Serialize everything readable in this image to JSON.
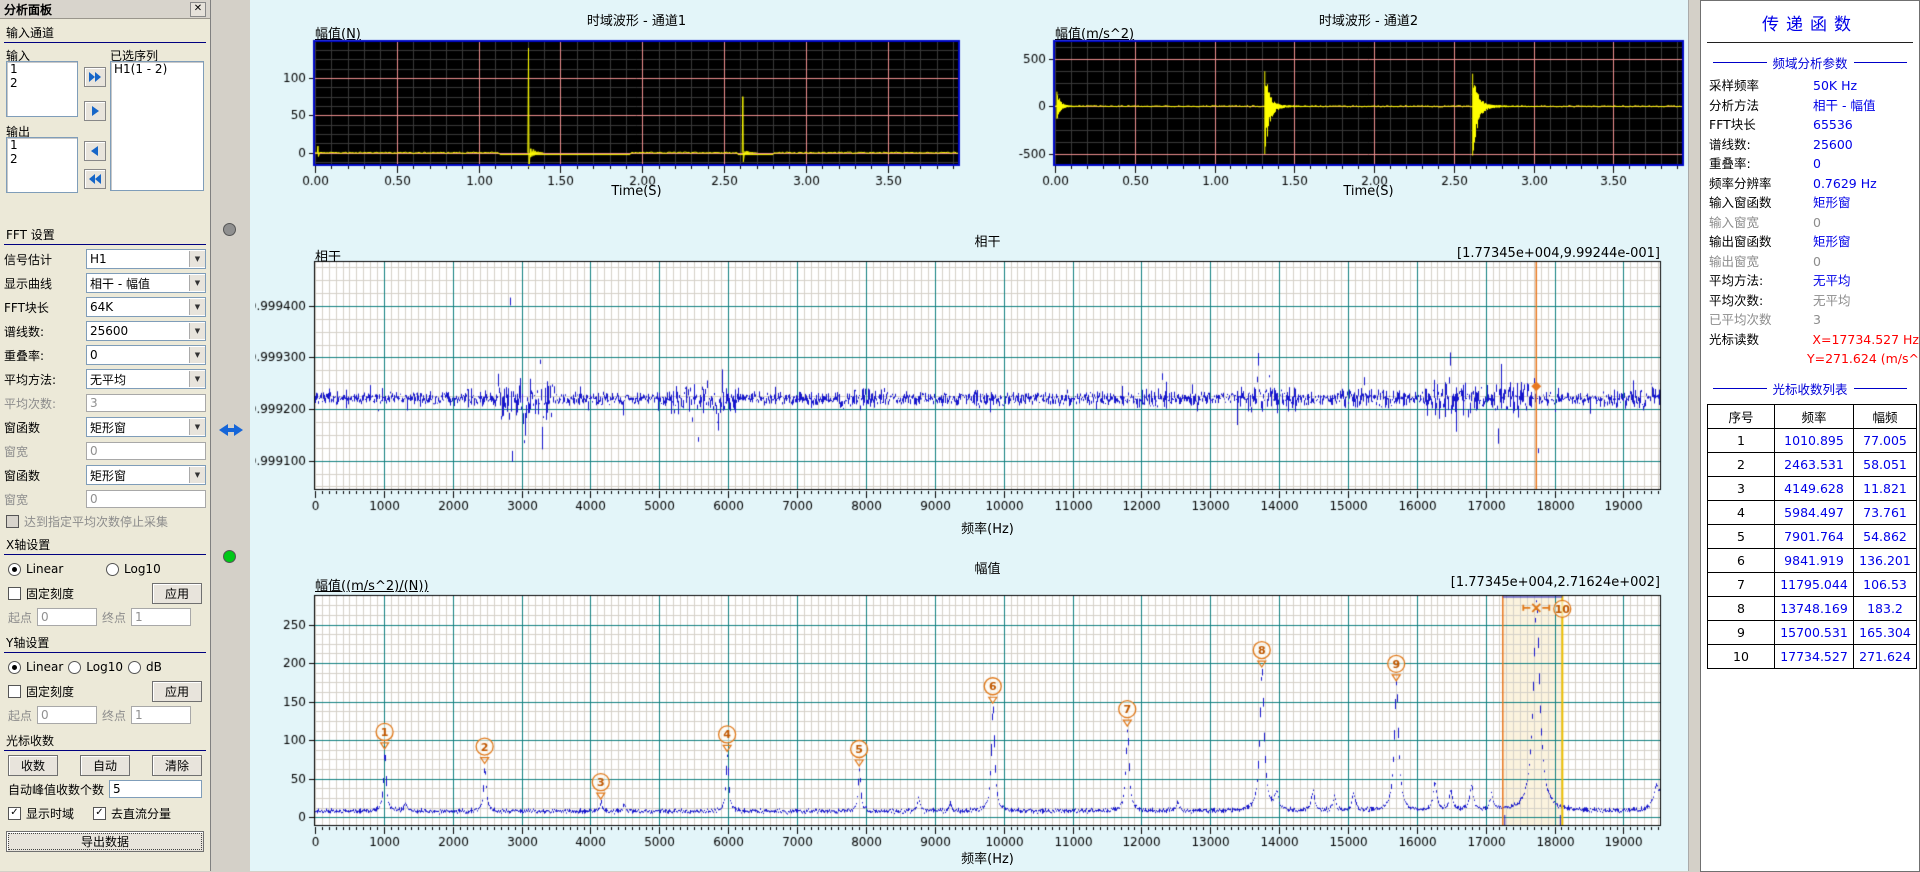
{
  "icons": {
    "close": "✕",
    "dropdown": "▼"
  },
  "palette": {
    "chart_bg": "#E3F5F9",
    "time_bg": "#000000",
    "time_grid_major": "#EF8F8F",
    "time_grid_minor": "#3A3A3A",
    "time_trace": "#FFFF00",
    "time_border": "#0008C8",
    "freq_grid_major": "#108080",
    "freq_grid_minor": "#D5D1C8",
    "freq_trace": "#1515CC",
    "cursor_orange": "#E87820",
    "cursor_gold": "#EFC000",
    "band_fill": "#FBF3DE",
    "marker_orange": "#E07818",
    "value_blue": "#0000E8",
    "value_gray": "#8C8C8C",
    "value_red": "#FF0000"
  },
  "left_panel": {
    "title": "分析面板",
    "input_section": {
      "title": "输入通道",
      "input_label": "输入",
      "input_items": [
        "1",
        "2"
      ],
      "selected_label": "已选序列",
      "selected_items": [
        "H1(1 - 2)"
      ],
      "output_label": "输出",
      "output_items": [
        "1",
        "2"
      ]
    },
    "fft": {
      "title": "FFT 设置",
      "rows": [
        {
          "label": "信号估计",
          "value": "H1",
          "type": "select"
        },
        {
          "label": "显示曲线",
          "value": "相干 - 幅值",
          "type": "select"
        },
        {
          "label": "FFT块长",
          "value": "64K",
          "type": "select"
        },
        {
          "label": "谱线数:",
          "value": "25600",
          "type": "select"
        },
        {
          "label": "重叠率:",
          "value": "0",
          "type": "select"
        },
        {
          "label": "平均方法:",
          "value": "无平均",
          "type": "select"
        },
        {
          "label": "平均次数:",
          "value": "3",
          "type": "input",
          "disabled": true
        },
        {
          "label": "窗函数",
          "value": "矩形窗",
          "type": "select"
        },
        {
          "label": "窗宽",
          "value": "0",
          "type": "input",
          "disabled": true
        },
        {
          "label": "窗函数",
          "value": "矩形窗",
          "type": "select"
        },
        {
          "label": "窗宽",
          "value": "0",
          "type": "input",
          "disabled": true
        }
      ],
      "stop_checkbox": "达到指定平均次数停止采集"
    },
    "x_axis": {
      "title": "X轴设置",
      "linear": "Linear",
      "log10": "Log10",
      "fixed": "固定刻度",
      "apply": "应用",
      "start_label": "起点",
      "start": "0",
      "end_label": "终点",
      "end": "1"
    },
    "y_axis": {
      "title": "Y轴设置",
      "linear": "Linear",
      "log10": "Log10",
      "db": "dB",
      "fixed": "固定刻度",
      "apply": "应用",
      "start_label": "起点",
      "start": "0",
      "end_label": "终点",
      "end": "1"
    },
    "cursor_section": {
      "title": "光标收数",
      "collect": "收数",
      "auto": "自动",
      "clear": "清除",
      "count_label": "自动峰值收数个数",
      "count_value": "5",
      "show_time": "显示时域",
      "remove_dc": "去直流分量",
      "export": "导出数据"
    }
  },
  "right_panel": {
    "title": "传递函数",
    "freq_section": "频域分析参数",
    "params": [
      {
        "label": "采样频率",
        "value": "50K Hz",
        "lc": "black",
        "vc": "blue"
      },
      {
        "label": "分析方法",
        "value": "相干 - 幅值",
        "lc": "black",
        "vc": "blue"
      },
      {
        "label": "FFT块长",
        "value": "65536",
        "lc": "black",
        "vc": "blue"
      },
      {
        "label": "谱线数:",
        "value": "25600",
        "lc": "black",
        "vc": "blue"
      },
      {
        "label": "重叠率:",
        "value": "0",
        "lc": "black",
        "vc": "blue"
      },
      {
        "label": "频率分辨率",
        "value": "0.7629 Hz",
        "lc": "black",
        "vc": "blue"
      },
      {
        "label": "输入窗函数",
        "value": "矩形窗",
        "lc": "black",
        "vc": "blue"
      },
      {
        "label": "输入窗宽",
        "value": "0",
        "lc": "gray",
        "vc": "gray"
      },
      {
        "label": "输出窗函数",
        "value": "矩形窗",
        "lc": "black",
        "vc": "blue"
      },
      {
        "label": "输出窗宽",
        "value": "0",
        "lc": "gray",
        "vc": "gray"
      },
      {
        "label": "平均方法:",
        "value": "无平均",
        "lc": "black",
        "vc": "blue"
      },
      {
        "label": "平均次数:",
        "value": "无平均",
        "lc": "black",
        "vc": "gray"
      },
      {
        "label": "已平均次数",
        "value": "3",
        "lc": "gray",
        "vc": "gray"
      },
      {
        "label": "光标读数",
        "value": "X=17734.527 Hz",
        "value2": "Y=271.624 (m/s^",
        "lc": "black",
        "vc": "red"
      }
    ],
    "table_section": "光标收数列表",
    "table": {
      "headers": [
        "序号",
        "频率",
        "幅频"
      ],
      "rows": [
        [
          "1",
          "1010.895",
          "77.005"
        ],
        [
          "2",
          "2463.531",
          "58.051"
        ],
        [
          "3",
          "4149.628",
          "11.821"
        ],
        [
          "4",
          "5984.497",
          "73.761"
        ],
        [
          "5",
          "7901.764",
          "54.862"
        ],
        [
          "6",
          "9841.919",
          "136.201"
        ],
        [
          "7",
          "11795.044",
          "106.53"
        ],
        [
          "8",
          "13748.169",
          "183.2"
        ],
        [
          "9",
          "15700.531",
          "165.304"
        ],
        [
          "10",
          "17734.527",
          "271.624"
        ]
      ]
    }
  },
  "chart_data": [
    {
      "id": "td1",
      "type": "line",
      "title": "时域波形 - 通道1",
      "ylabel": "幅值(N)",
      "xlabel": "Time(S)",
      "xlim": [
        0,
        3.93
      ],
      "ylim": [
        -15,
        148
      ],
      "xticks": [
        0,
        0.5,
        1,
        1.5,
        2,
        2.5,
        3,
        3.5
      ],
      "yticks": [
        0,
        50,
        100
      ],
      "x_minor": 0.1,
      "y_minor": 12.5,
      "x_major": 0.5,
      "y_major": 50,
      "spikes": [
        {
          "t": 0.018,
          "peak": 9,
          "trough": -5
        },
        {
          "t": 1.305,
          "peak": 140,
          "trough": -19
        },
        {
          "t": 2.615,
          "peak": 75,
          "trough": -12
        }
      ],
      "sag_ranges": [
        [
          1.13,
          1.93
        ],
        [
          2.58,
          2.8
        ]
      ]
    },
    {
      "id": "td2",
      "type": "line",
      "title": "时域波形 - 通道2",
      "ylabel": "幅值(m/s^2)",
      "xlabel": "Time(S)",
      "xlim": [
        0,
        3.93
      ],
      "ylim": [
        -610,
        680
      ],
      "xticks": [
        0,
        0.5,
        1,
        1.5,
        2,
        2.5,
        3,
        3.5
      ],
      "yticks": [
        -500,
        0,
        500
      ],
      "x_minor": 0.1,
      "y_minor": 125,
      "x_major": 0.5,
      "y_major": 500,
      "bursts": [
        {
          "t": 0.012,
          "peak": 155,
          "trough": -130,
          "decay": 0.022
        },
        {
          "t": 1.315,
          "peak": 370,
          "trough": -505,
          "decay": 0.026
        },
        {
          "t": 2.618,
          "peak": 345,
          "trough": -520,
          "decay": 0.03
        }
      ]
    },
    {
      "id": "coh",
      "type": "line",
      "title": "相干",
      "ylabel": "相干",
      "xlabel": "频率(Hz)",
      "corner_label": "[1.77345e+004,9.99244e-001]",
      "xlim": [
        0,
        19531
      ],
      "ylim": [
        0.999045,
        0.999485
      ],
      "xticks": [
        0,
        1000,
        2000,
        3000,
        4000,
        5000,
        6000,
        7000,
        8000,
        9000,
        10000,
        11000,
        12000,
        13000,
        14000,
        15000,
        16000,
        17000,
        18000,
        19000
      ],
      "yticks": [
        0.9991,
        0.9992,
        0.9993,
        0.9994
      ],
      "x_minor": 100,
      "y_minor": 2.5e-05,
      "x_major": 1000,
      "y_major": 0.0001,
      "baseline": 0.99922,
      "noise": 9e-06,
      "noise_clusters": [
        [
          2650,
          3450,
          3.2
        ],
        [
          5200,
          6150,
          2.4
        ],
        [
          7600,
          8300,
          1.6
        ],
        [
          9500,
          9900,
          1.3
        ],
        [
          11900,
          12400,
          1.5
        ],
        [
          13350,
          14250,
          2.0
        ],
        [
          14800,
          15800,
          1.6
        ],
        [
          16100,
          17650,
          2.6
        ],
        [
          18700,
          19531,
          1.5
        ]
      ],
      "features": [
        [
          2830,
          0.00024,
          10
        ],
        [
          2860,
          -0.00014,
          18
        ],
        [
          3040,
          -8e-05,
          60
        ],
        [
          3265,
          0.000135,
          10
        ],
        [
          3300,
          -0.0001,
          25
        ],
        [
          5470,
          -0.00012,
          12
        ],
        [
          5560,
          -8e-05,
          30
        ],
        [
          5840,
          -6e-05,
          40
        ],
        [
          7920,
          -5e-05,
          15
        ],
        [
          12060,
          4e-05,
          10
        ],
        [
          13690,
          8e-05,
          25
        ],
        [
          13740,
          -5e-05,
          12
        ],
        [
          16480,
          4e-05,
          40
        ],
        [
          17180,
          -6e-05,
          25
        ],
        [
          17700,
          5.5e-05,
          8
        ],
        [
          17760,
          -0.00012,
          10
        ],
        [
          19060,
          -0.00014,
          8
        ],
        [
          19400,
          3e-05,
          30
        ]
      ],
      "cursor": {
        "x": 17734.527,
        "y": 0.999244
      }
    },
    {
      "id": "amp",
      "type": "line",
      "title": "幅值",
      "ylabel": "幅值((m/s^2)/(N))",
      "xlabel": "频率(Hz)",
      "corner_label": "[1.77345e+004,2.71624e+002]",
      "xlim": [
        0,
        19531
      ],
      "ylim": [
        -10,
        287
      ],
      "xticks": [
        0,
        1000,
        2000,
        3000,
        4000,
        5000,
        6000,
        7000,
        8000,
        9000,
        10000,
        11000,
        12000,
        13000,
        14000,
        15000,
        16000,
        17000,
        18000,
        19000
      ],
      "yticks": [
        0,
        50,
        100,
        150,
        200,
        250
      ],
      "x_minor": 100,
      "y_minor": 12.5,
      "x_major": 1000,
      "y_major": 50,
      "peaks": [
        {
          "n": 1,
          "f": 1010.895,
          "a": 77.005,
          "w": 22
        },
        {
          "n": 2,
          "f": 2463.531,
          "a": 58.051,
          "w": 22
        },
        {
          "n": 3,
          "f": 4149.628,
          "a": 11.821,
          "w": 20
        },
        {
          "n": 4,
          "f": 5984.497,
          "a": 73.761,
          "w": 22
        },
        {
          "n": 5,
          "f": 7901.764,
          "a": 54.862,
          "w": 22
        },
        {
          "n": 6,
          "f": 9841.919,
          "a": 136.201,
          "w": 28
        },
        {
          "n": 7,
          "f": 11795.044,
          "a": 106.53,
          "w": 28
        },
        {
          "n": 8,
          "f": 13748.169,
          "a": 183.2,
          "w": 36
        },
        {
          "n": 9,
          "f": 15700.531,
          "a": 165.304,
          "w": 36
        },
        {
          "n": 10,
          "f": 17734.527,
          "a": 271.624,
          "w": 55
        }
      ],
      "extra_peaks": [
        [
          1310,
          10,
          25
        ],
        [
          4490,
          8,
          22
        ],
        [
          8760,
          16,
          25
        ],
        [
          9220,
          10,
          22
        ],
        [
          12520,
          12,
          25
        ],
        [
          13960,
          22,
          30
        ],
        [
          14490,
          26,
          28
        ],
        [
          14800,
          18,
          28
        ],
        [
          15080,
          22,
          28
        ],
        [
          16260,
          36,
          30
        ],
        [
          16490,
          26,
          28
        ],
        [
          16790,
          32,
          30
        ],
        [
          17080,
          20,
          28
        ],
        [
          19480,
          34,
          60
        ]
      ],
      "band": {
        "x1": 17248,
        "x2": 18113
      },
      "cursor": {
        "x": 17734.527,
        "y": 271.624
      }
    }
  ]
}
